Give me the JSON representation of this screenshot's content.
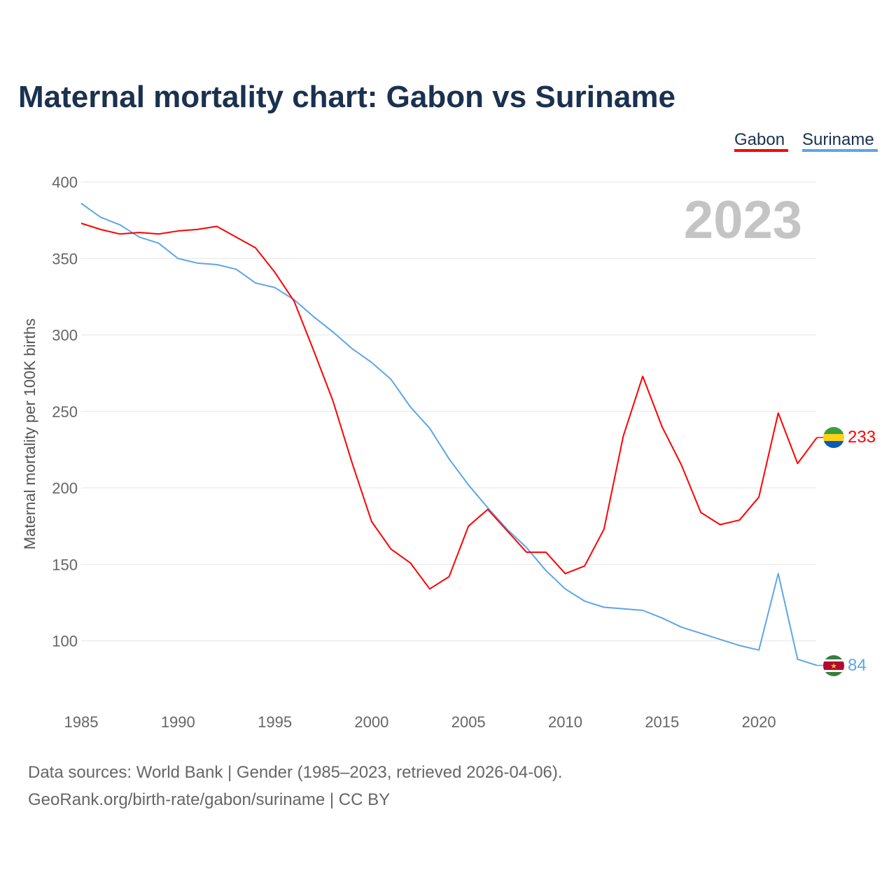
{
  "chart_data": {
    "type": "line",
    "title": "Maternal mortality chart: Gabon vs Suriname",
    "xlabel": "",
    "ylabel": "Maternal mortality per 100K births",
    "xlim": [
      1985,
      2023
    ],
    "ylim": [
      60,
      400
    ],
    "xticks": [
      1985,
      1990,
      1995,
      2000,
      2005,
      2010,
      2015,
      2020
    ],
    "yticks": [
      100,
      150,
      200,
      250,
      300,
      350,
      400
    ],
    "grid": true,
    "legend_position": "top-right",
    "year_label": "2023",
    "x": [
      1985,
      1986,
      1987,
      1988,
      1989,
      1990,
      1991,
      1992,
      1993,
      1994,
      1995,
      1996,
      1997,
      1998,
      1999,
      2000,
      2001,
      2002,
      2003,
      2004,
      2005,
      2006,
      2007,
      2008,
      2009,
      2010,
      2011,
      2012,
      2013,
      2014,
      2015,
      2016,
      2017,
      2018,
      2019,
      2020,
      2021,
      2022,
      2023
    ],
    "series": [
      {
        "name": "Gabon",
        "color": "#ff0000",
        "end_label": "233",
        "values": [
          373,
          369,
          366,
          367,
          366,
          368,
          369,
          371,
          364,
          357,
          341,
          322,
          290,
          257,
          216,
          178,
          160,
          151,
          134,
          142,
          175,
          186,
          172,
          158,
          158,
          144,
          149,
          173,
          234,
          273,
          240,
          215,
          184,
          176,
          179,
          194,
          249,
          216,
          233
        ]
      },
      {
        "name": "Suriname",
        "color": "#5da5ea",
        "end_label": "84",
        "values": [
          386,
          377,
          372,
          364,
          360,
          350,
          347,
          346,
          343,
          334,
          331,
          323,
          312,
          302,
          291,
          282,
          271,
          253,
          239,
          219,
          202,
          187,
          173,
          161,
          146,
          134,
          126,
          122,
          121,
          120,
          115,
          109,
          105,
          101,
          97,
          94,
          144,
          88,
          84
        ]
      }
    ]
  },
  "footer": {
    "source": "Data sources: World Bank | Gender (1985–2023, retrieved 2026-04-06).",
    "credit": "GeoRank.org/birth-rate/gabon/suriname | CC BY"
  }
}
